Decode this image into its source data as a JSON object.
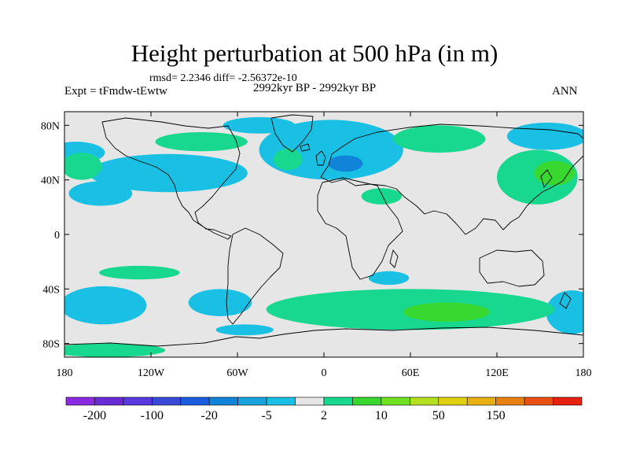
{
  "chart_data": {
    "type": "heatmap",
    "title": "Height perturbation at 500 hPa (in m)",
    "subtitle": "rmsd= 2.2346 diff= -2.56372e-10",
    "left_string": "Expt = tFmdw-tEwtw",
    "center_string": "2992kyr BP - 2992kyr BP",
    "right_string": "ANN",
    "projection": "cylindrical equidistant",
    "xlim": [
      -180,
      180
    ],
    "ylim": [
      -90,
      90
    ],
    "x_ticks": [
      {
        "value": -180,
        "label": "180"
      },
      {
        "value": -120,
        "label": "120W"
      },
      {
        "value": -60,
        "label": "60W"
      },
      {
        "value": 0,
        "label": "0"
      },
      {
        "value": 60,
        "label": "60E"
      },
      {
        "value": 120,
        "label": "120E"
      },
      {
        "value": 180,
        "label": "180"
      }
    ],
    "y_ticks": [
      {
        "value": 80,
        "label": "80N"
      },
      {
        "value": 40,
        "label": "40N"
      },
      {
        "value": 0,
        "label": "0"
      },
      {
        "value": -40,
        "label": "40S"
      },
      {
        "value": -80,
        "label": "80S"
      }
    ],
    "colorbar": {
      "colors": [
        "#8a2be2",
        "#6a2ad6",
        "#5a3ae0",
        "#3a4ad8",
        "#1a5ce0",
        "#0f84d8",
        "#17a4dc",
        "#19c0e4",
        "#e6e6e6",
        "#18d890",
        "#38d830",
        "#70e020",
        "#b4e020",
        "#e0d010",
        "#e8b010",
        "#e88010",
        "#e85010",
        "#e82010"
      ],
      "labels": [
        "-200",
        "-100",
        "-20",
        "-5",
        "2",
        "10",
        "50",
        "150"
      ]
    },
    "regions": [
      {
        "level": "-5",
        "lon": 155,
        "lat": 72,
        "rx": 28,
        "ry": 10
      },
      {
        "level": "-5",
        "lon": -172,
        "lat": 60,
        "rx": 20,
        "ry": 8
      },
      {
        "level": "-5",
        "lon": -108,
        "lat": 45,
        "rx": 55,
        "ry": 14
      },
      {
        "level": "-5",
        "lon": -45,
        "lat": 80,
        "rx": 25,
        "ry": 6
      },
      {
        "level": "-5",
        "lon": -155,
        "lat": 30,
        "rx": 22,
        "ry": 9
      },
      {
        "level": "-5",
        "lon": 5,
        "lat": 62,
        "rx": 50,
        "ry": 22
      },
      {
        "level": "-5",
        "lon": 45,
        "lat": -32,
        "rx": 14,
        "ry": 5
      },
      {
        "level": "-5",
        "lon": -153,
        "lat": -52,
        "rx": 30,
        "ry": 14
      },
      {
        "level": "-5",
        "lon": -72,
        "lat": -50,
        "rx": 22,
        "ry": 10
      },
      {
        "level": "-5",
        "lon": 172,
        "lat": -57,
        "rx": 18,
        "ry": 16
      },
      {
        "level": "-5",
        "lon": -55,
        "lat": -70,
        "rx": 20,
        "ry": 4
      },
      {
        "level": "-20",
        "lon": 15,
        "lat": 52,
        "rx": 12,
        "ry": 6
      },
      {
        "level": "2",
        "lon": -168,
        "lat": 50,
        "rx": 14,
        "ry": 10
      },
      {
        "level": "2",
        "lon": -85,
        "lat": 68,
        "rx": 32,
        "ry": 7
      },
      {
        "level": "2",
        "lon": -25,
        "lat": 55,
        "rx": 10,
        "ry": 8
      },
      {
        "level": "2",
        "lon": 80,
        "lat": 70,
        "rx": 32,
        "ry": 10
      },
      {
        "level": "2",
        "lon": 40,
        "lat": 28,
        "rx": 14,
        "ry": 6
      },
      {
        "level": "2",
        "lon": 148,
        "lat": 42,
        "rx": 28,
        "ry": 20
      },
      {
        "level": "2",
        "lon": -128,
        "lat": -28,
        "rx": 28,
        "ry": 5
      },
      {
        "level": "2",
        "lon": 60,
        "lat": -55,
        "rx": 100,
        "ry": 15
      },
      {
        "level": "2",
        "lon": -150,
        "lat": -85,
        "rx": 40,
        "ry": 5
      },
      {
        "level": "10",
        "lon": 160,
        "lat": 45,
        "rx": 14,
        "ry": 9
      },
      {
        "level": "10",
        "lon": 85,
        "lat": -57,
        "rx": 30,
        "ry": 7
      }
    ]
  }
}
